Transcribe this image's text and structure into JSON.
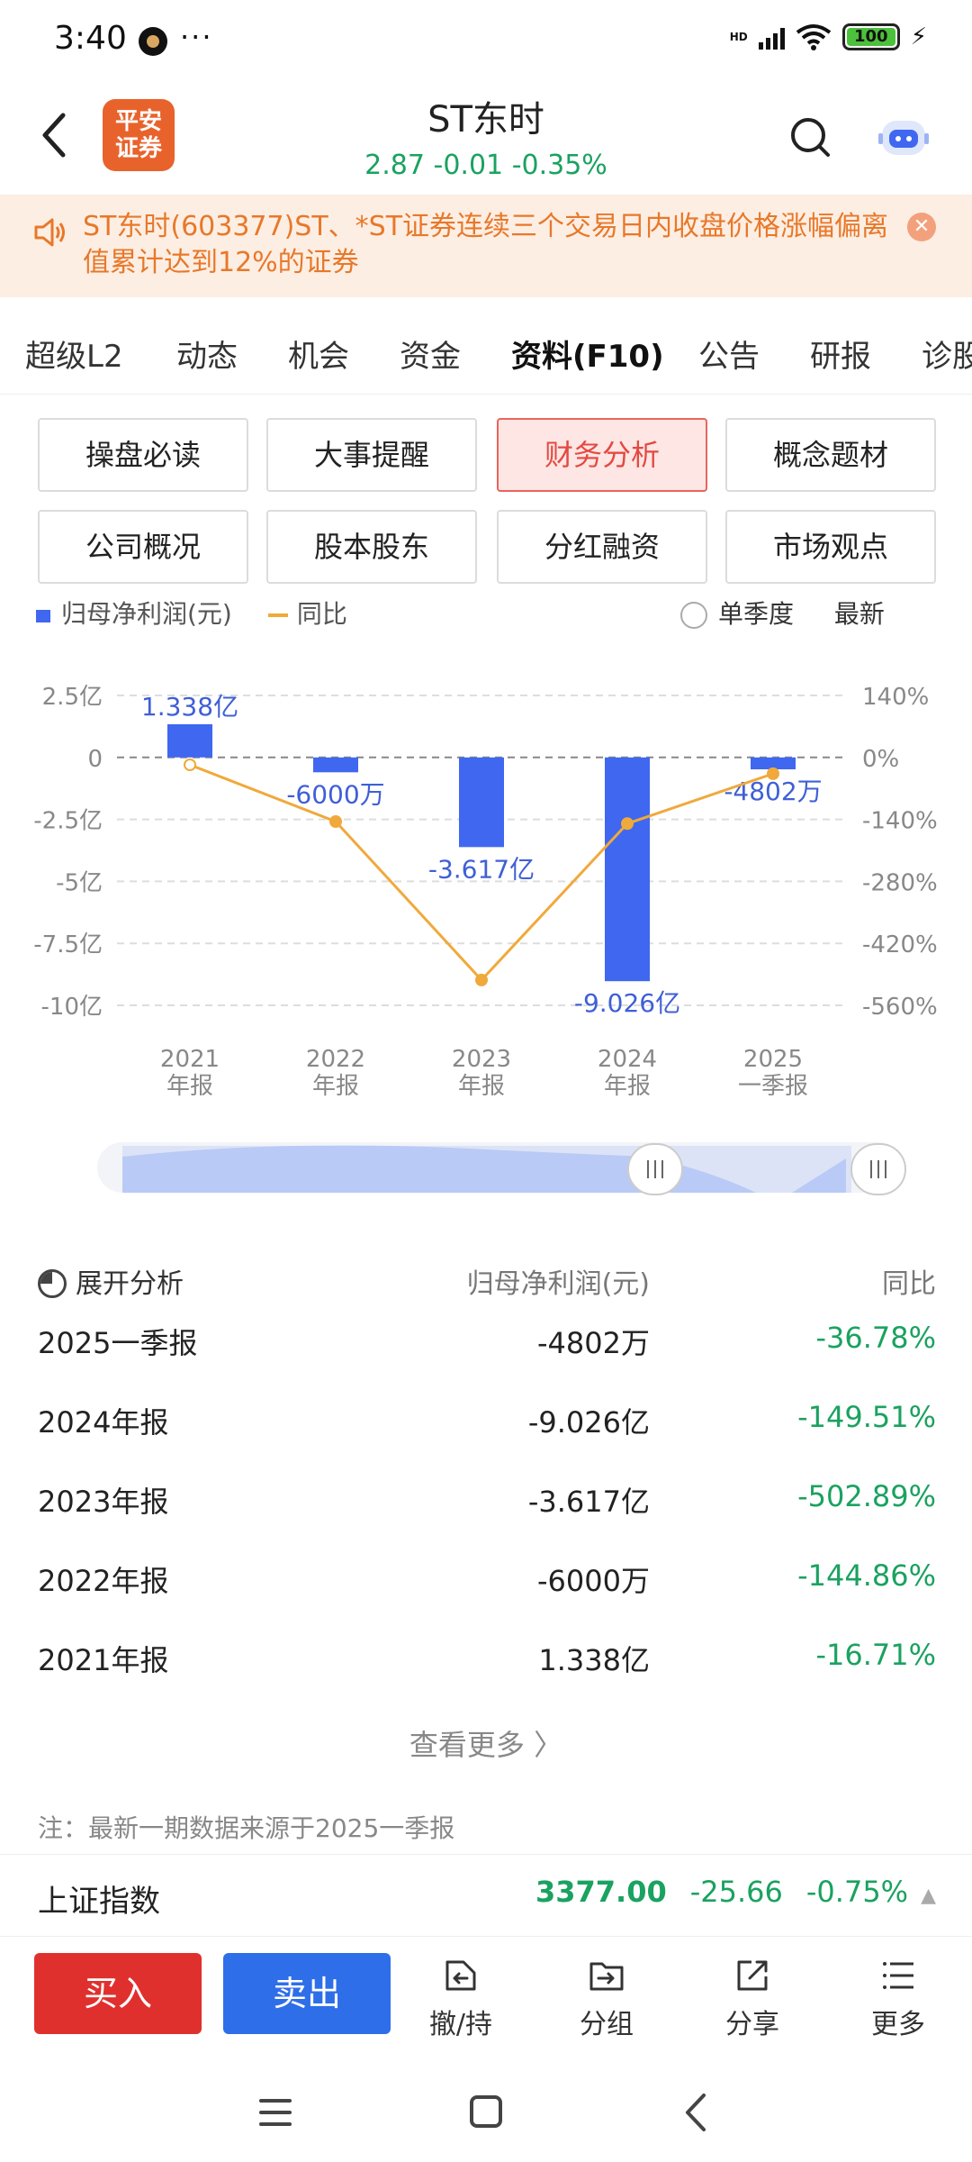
{
  "status_bar": {
    "time": "3:40",
    "dots": "···",
    "signal_label": "HD",
    "battery": "100"
  },
  "header": {
    "logo_text": "平安\n证券",
    "title": "ST东时",
    "price": "2.87",
    "change": "-0.01",
    "change_pct": "-0.35%",
    "quote_color": "#1aa260"
  },
  "notice": {
    "text": "ST东时(603377)ST、*ST证券连续三个交易日内收盘价格涨幅偏离值累计达到12%的证券"
  },
  "tabs": [
    {
      "label": "超级L2"
    },
    {
      "label": "动态"
    },
    {
      "label": "机会"
    },
    {
      "label": "资金"
    },
    {
      "label": "资料(F10)",
      "active": true
    },
    {
      "label": "公告"
    },
    {
      "label": "研报"
    },
    {
      "label": "诊股"
    }
  ],
  "grid_buttons": [
    {
      "label": "操盘必读"
    },
    {
      "label": "大事提醒"
    },
    {
      "label": "财务分析",
      "active": true
    },
    {
      "label": "概念题材"
    },
    {
      "label": "公司概况"
    },
    {
      "label": "股本股东"
    },
    {
      "label": "分红融资"
    },
    {
      "label": "市场观点"
    }
  ],
  "chart_header": {
    "legend_bar": "归母净利润(元)",
    "legend_line": "同比",
    "period_option": "单季度",
    "period_selected": "最新"
  },
  "chart_data": {
    "type": "bar",
    "categories": [
      "2021\n年报",
      "2022\n年报",
      "2023\n年报",
      "2024\n年报",
      "2025\n一季报"
    ],
    "series": [
      {
        "name": "归母净利润(元)",
        "type": "bar",
        "values": [
          133800000,
          -60000000,
          -361700000,
          -902600000,
          -48020000
        ],
        "color": "#3f67f0"
      },
      {
        "name": "同比",
        "type": "line",
        "values": [
          -16.71,
          -144.86,
          -502.89,
          -149.51,
          -36.78
        ],
        "color": "#f0a93b"
      }
    ],
    "bar_labels": [
      "1.338亿",
      "-6000万",
      "-3.617亿",
      "-9.026亿",
      "-4802万"
    ],
    "y_left_ticks": [
      "2.5亿",
      "0",
      "-2.5亿",
      "-5亿",
      "-7.5亿",
      "-10亿"
    ],
    "y_left_range": [
      -1000000000,
      250000000
    ],
    "y_right_ticks": [
      "140%",
      "0%",
      "-140%",
      "-280%",
      "-420%",
      "-560%"
    ],
    "y_right_range": [
      -560,
      140
    ],
    "grid": true
  },
  "analysis": {
    "header_label": "展开分析",
    "col_profit": "归母净利润(元)",
    "col_yoy": "同比",
    "rows": [
      {
        "period": "2025一季报",
        "profit": "-4802万",
        "yoy": "-36.78%"
      },
      {
        "period": "2024年报",
        "profit": "-9.026亿",
        "yoy": "-149.51%"
      },
      {
        "period": "2023年报",
        "profit": "-3.617亿",
        "yoy": "-502.89%"
      },
      {
        "period": "2022年报",
        "profit": "-6000万",
        "yoy": "-144.86%"
      },
      {
        "period": "2021年报",
        "profit": "1.338亿",
        "yoy": "-16.71%"
      }
    ],
    "more": "查看更多 〉",
    "note": "注：最新一期数据来源于2025一季报"
  },
  "index_bar": {
    "name": "上证指数",
    "value": "3377.00",
    "change": "-25.66",
    "change_pct": "-0.75%"
  },
  "toolbar": {
    "buy": "买入",
    "sell": "卖出",
    "tools": [
      {
        "label": "撤/持",
        "icon": "withdraw-icon"
      },
      {
        "label": "分组",
        "icon": "folder-icon"
      },
      {
        "label": "分享",
        "icon": "share-icon"
      },
      {
        "label": "更多",
        "icon": "menu-icon"
      }
    ]
  }
}
